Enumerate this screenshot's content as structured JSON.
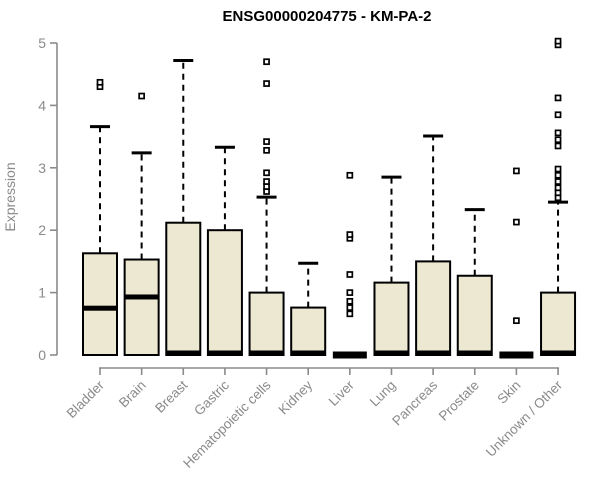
{
  "chart_data": {
    "type": "boxplot",
    "title": "ENSG00000204775 - KM-PA-2",
    "ylabel": "Expression",
    "xlabel": "",
    "ylim": [
      0,
      5
    ],
    "yticks": [
      0,
      1,
      2,
      3,
      4,
      5
    ],
    "grid": false,
    "legend": "none",
    "categories": [
      "Bladder",
      "Brain",
      "Breast",
      "Gastric",
      "Hematopoietic cells",
      "Kidney",
      "Liver",
      "Lung",
      "Pancreas",
      "Prostate",
      "Skin",
      "Unknown / Other"
    ],
    "series": [
      {
        "name": "Bladder",
        "q1": 0,
        "median": 0.75,
        "q3": 1.63,
        "whisker_low": 0,
        "whisker_high": 3.66,
        "outliers": [
          4.3,
          4.37
        ]
      },
      {
        "name": "Brain",
        "q1": 0,
        "median": 0.93,
        "q3": 1.53,
        "whisker_low": 0,
        "whisker_high": 3.24,
        "outliers": [
          4.15
        ]
      },
      {
        "name": "Breast",
        "q1": 0,
        "median": 0,
        "q3": 2.12,
        "whisker_low": 0,
        "whisker_high": 4.72,
        "outliers": []
      },
      {
        "name": "Gastric",
        "q1": 0,
        "median": 0,
        "q3": 2.0,
        "whisker_low": 0,
        "whisker_high": 3.33,
        "outliers": []
      },
      {
        "name": "Hematopoietic cells",
        "q1": 0,
        "median": 0,
        "q3": 1.0,
        "whisker_low": 0,
        "whisker_high": 2.53,
        "outliers": [
          2.62,
          2.7,
          2.78,
          2.92,
          3.28,
          3.42,
          4.35,
          4.7
        ]
      },
      {
        "name": "Kidney",
        "q1": 0,
        "median": 0,
        "q3": 0.76,
        "whisker_low": 0,
        "whisker_high": 1.47,
        "outliers": []
      },
      {
        "name": "Liver",
        "q1": 0,
        "median": 0,
        "q3": 0,
        "whisker_low": 0,
        "whisker_high": 0,
        "outliers": [
          0.66,
          0.76,
          0.86,
          1.0,
          1.29,
          1.87,
          1.93,
          2.88
        ]
      },
      {
        "name": "Lung",
        "q1": 0,
        "median": 0,
        "q3": 1.16,
        "whisker_low": 0,
        "whisker_high": 2.85,
        "outliers": []
      },
      {
        "name": "Pancreas",
        "q1": 0,
        "median": 0,
        "q3": 1.5,
        "whisker_low": 0,
        "whisker_high": 3.51,
        "outliers": []
      },
      {
        "name": "Prostate",
        "q1": 0,
        "median": 0,
        "q3": 1.27,
        "whisker_low": 0,
        "whisker_high": 2.33,
        "outliers": []
      },
      {
        "name": "Skin",
        "q1": 0,
        "median": 0,
        "q3": 0,
        "whisker_low": 0,
        "whisker_high": 0,
        "outliers": [
          0.55,
          2.13,
          2.95
        ]
      },
      {
        "name": "Unknown / Other",
        "q1": 0,
        "median": 0,
        "q3": 1.0,
        "whisker_low": 0,
        "whisker_high": 2.45,
        "outliers": [
          2.52,
          2.6,
          2.68,
          2.78,
          2.88,
          2.98,
          3.35,
          3.45,
          3.56,
          3.85,
          4.12,
          4.97,
          5.03
        ]
      }
    ],
    "colors": {
      "box_fill": "#EDE8D1",
      "box_border": "#000000",
      "median": "#000000",
      "whisker": "#000000",
      "outlier": "#000000",
      "axis": "#8a8a8a",
      "tick_label": "#8a8a8a",
      "title": "#000000",
      "background": "#ffffff"
    }
  }
}
